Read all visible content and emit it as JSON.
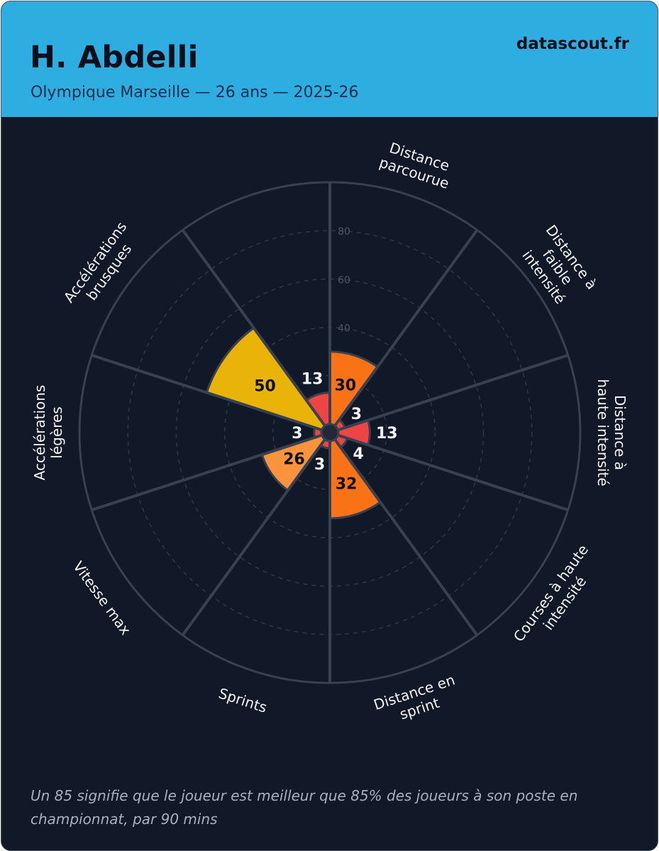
{
  "header": {
    "player_name": "H. Abdelli",
    "subtitle": "Olympique Marseille — 26 ans — 2025-26",
    "brand": "datascout.fr"
  },
  "chart_data": {
    "type": "polar-bar",
    "title": "",
    "range": [
      0,
      100
    ],
    "rings": [
      20,
      40,
      60,
      80,
      100
    ],
    "ring_labels": [
      "40",
      "60",
      "80"
    ],
    "grid": true,
    "categories": [
      {
        "label": [
          "Distance",
          "parcourue"
        ],
        "value": 30,
        "color": "#f97316"
      },
      {
        "label": [
          "Distance à",
          "faible",
          "intensité"
        ],
        "value": 3,
        "color": "#ef4444"
      },
      {
        "label": [
          "Distance à",
          "haute intensité"
        ],
        "value": 13,
        "color": "#ef4444"
      },
      {
        "label": [
          "Courses à haute",
          "intensité"
        ],
        "value": 4,
        "color": "#ef4444"
      },
      {
        "label": [
          "Distance en",
          "sprint"
        ],
        "value": 32,
        "color": "#f97316"
      },
      {
        "label": [
          "Sprints"
        ],
        "value": 3,
        "color": "#ef4444"
      },
      {
        "label": [
          "Vitesse max"
        ],
        "value": 26,
        "color": "#fb923c"
      },
      {
        "label": [
          "Accélérations",
          "légères"
        ],
        "value": 3,
        "color": "#ef4444"
      },
      {
        "label": [
          "Accélérations",
          "brusques"
        ],
        "value": 50,
        "color": "#eab308"
      },
      {
        "label": [],
        "value": 13,
        "color": "#ef4444"
      }
    ],
    "colors": {
      "background": "#111827",
      "spoke": "#374151",
      "ring": "#2f3747",
      "value_text_light": "#f3f4f6",
      "value_text_dark": "#0b0f1a",
      "category_text": "#f3f4f6",
      "ring_label": "#4b5563"
    }
  },
  "footnote": "Un 85 signifie que le joueur est meilleur que 85% des joueurs à son poste en championnat, par 90 mins"
}
